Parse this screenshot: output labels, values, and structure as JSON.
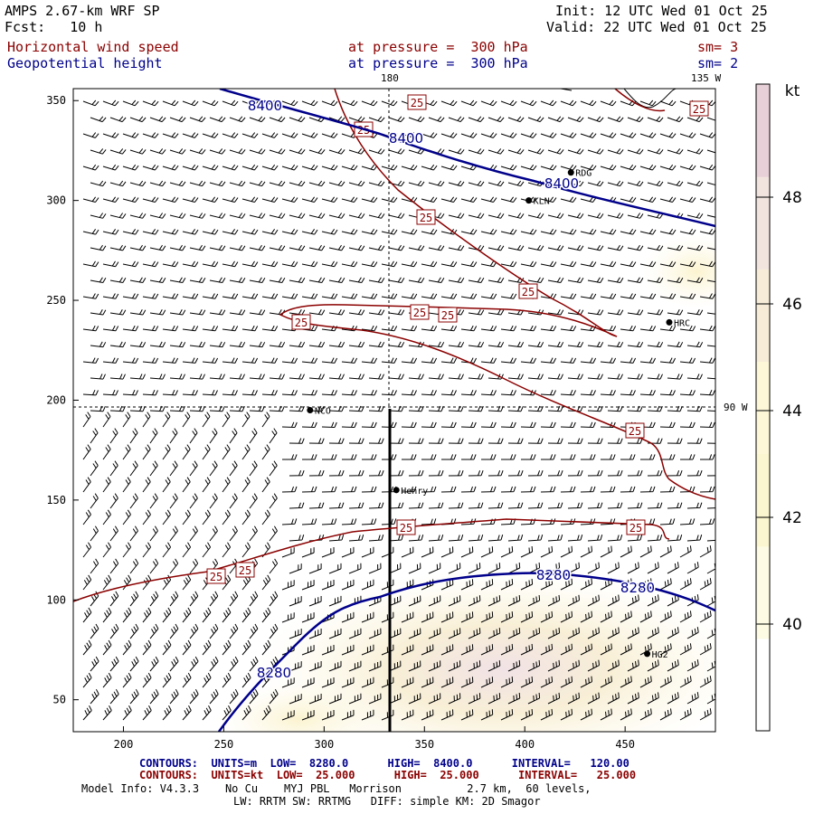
{
  "header": {
    "model": "AMPS 2.67-km WRF SP",
    "forecast": "Fcst:   10 h",
    "init": "Init: 12 UTC Wed 01 Oct 25",
    "valid": "Valid: 22 UTC Wed 01 Oct 25",
    "field1": "Horizontal wind speed",
    "field2": "Geopotential height",
    "pressure1": "at pressure =  300 hPa",
    "pressure2": "at pressure =  300 hPa",
    "smooth1": "sm= 3",
    "smooth2": "sm= 2"
  },
  "map_labels": {
    "lon_180": "180",
    "lon_135w": "135 W",
    "lon_90w": "90 W"
  },
  "stations": [
    {
      "name": "RDG",
      "x": 423,
      "y": 314
    },
    {
      "name": "KLN",
      "x": 402,
      "y": 300
    },
    {
      "name": "HRC",
      "x": 472,
      "y": 239
    },
    {
      "name": "NCO",
      "x": 293,
      "y": 195
    },
    {
      "name": "Henry",
      "x": 336,
      "y": 155
    },
    {
      "name": "HG2",
      "x": 461,
      "y": 73
    }
  ],
  "axes": {
    "x_ticks": [
      200,
      250,
      300,
      350,
      400,
      450
    ],
    "y_ticks": [
      50,
      100,
      150,
      200,
      250,
      300,
      350
    ],
    "x_range": [
      175,
      495
    ],
    "y_range": [
      34,
      356
    ]
  },
  "height_contours": {
    "units": "m",
    "labels": [
      "8400",
      "8400",
      "8400",
      "8280",
      "8280",
      "8280"
    ]
  },
  "speed_contours": {
    "units": "kt",
    "labels": [
      "25",
      "25",
      "25",
      "25",
      "25",
      "25",
      "25",
      "25",
      "25",
      "25",
      "25",
      "25",
      "25"
    ]
  },
  "colorbar": {
    "unit": "kt",
    "ticks": [
      "48",
      "46",
      "44",
      "42",
      "40"
    ],
    "colors": [
      "#ffffff",
      "#fdfbe3",
      "#fbf6cf",
      "#fdf7d8",
      "#f6ecd8",
      "#f1e4df",
      "#e8d0d8"
    ]
  },
  "footer": {
    "contours_height": "CONTOURS:  UNITS=m  LOW=  8280.0      HIGH=  8400.0      INTERVAL=   120.00",
    "contours_speed": "CONTOURS:  UNITS=kt  LOW=  25.000      HIGH=  25.000      INTERVAL=   25.000",
    "model_info": "Model Info: V4.3.3    No Cu    MYJ PBL   Morrison          2.7 km,  60 levels,",
    "model_info2": "LW: RRTM SW: RRTMG   DIFF: simple KM: 2D Smagor"
  }
}
